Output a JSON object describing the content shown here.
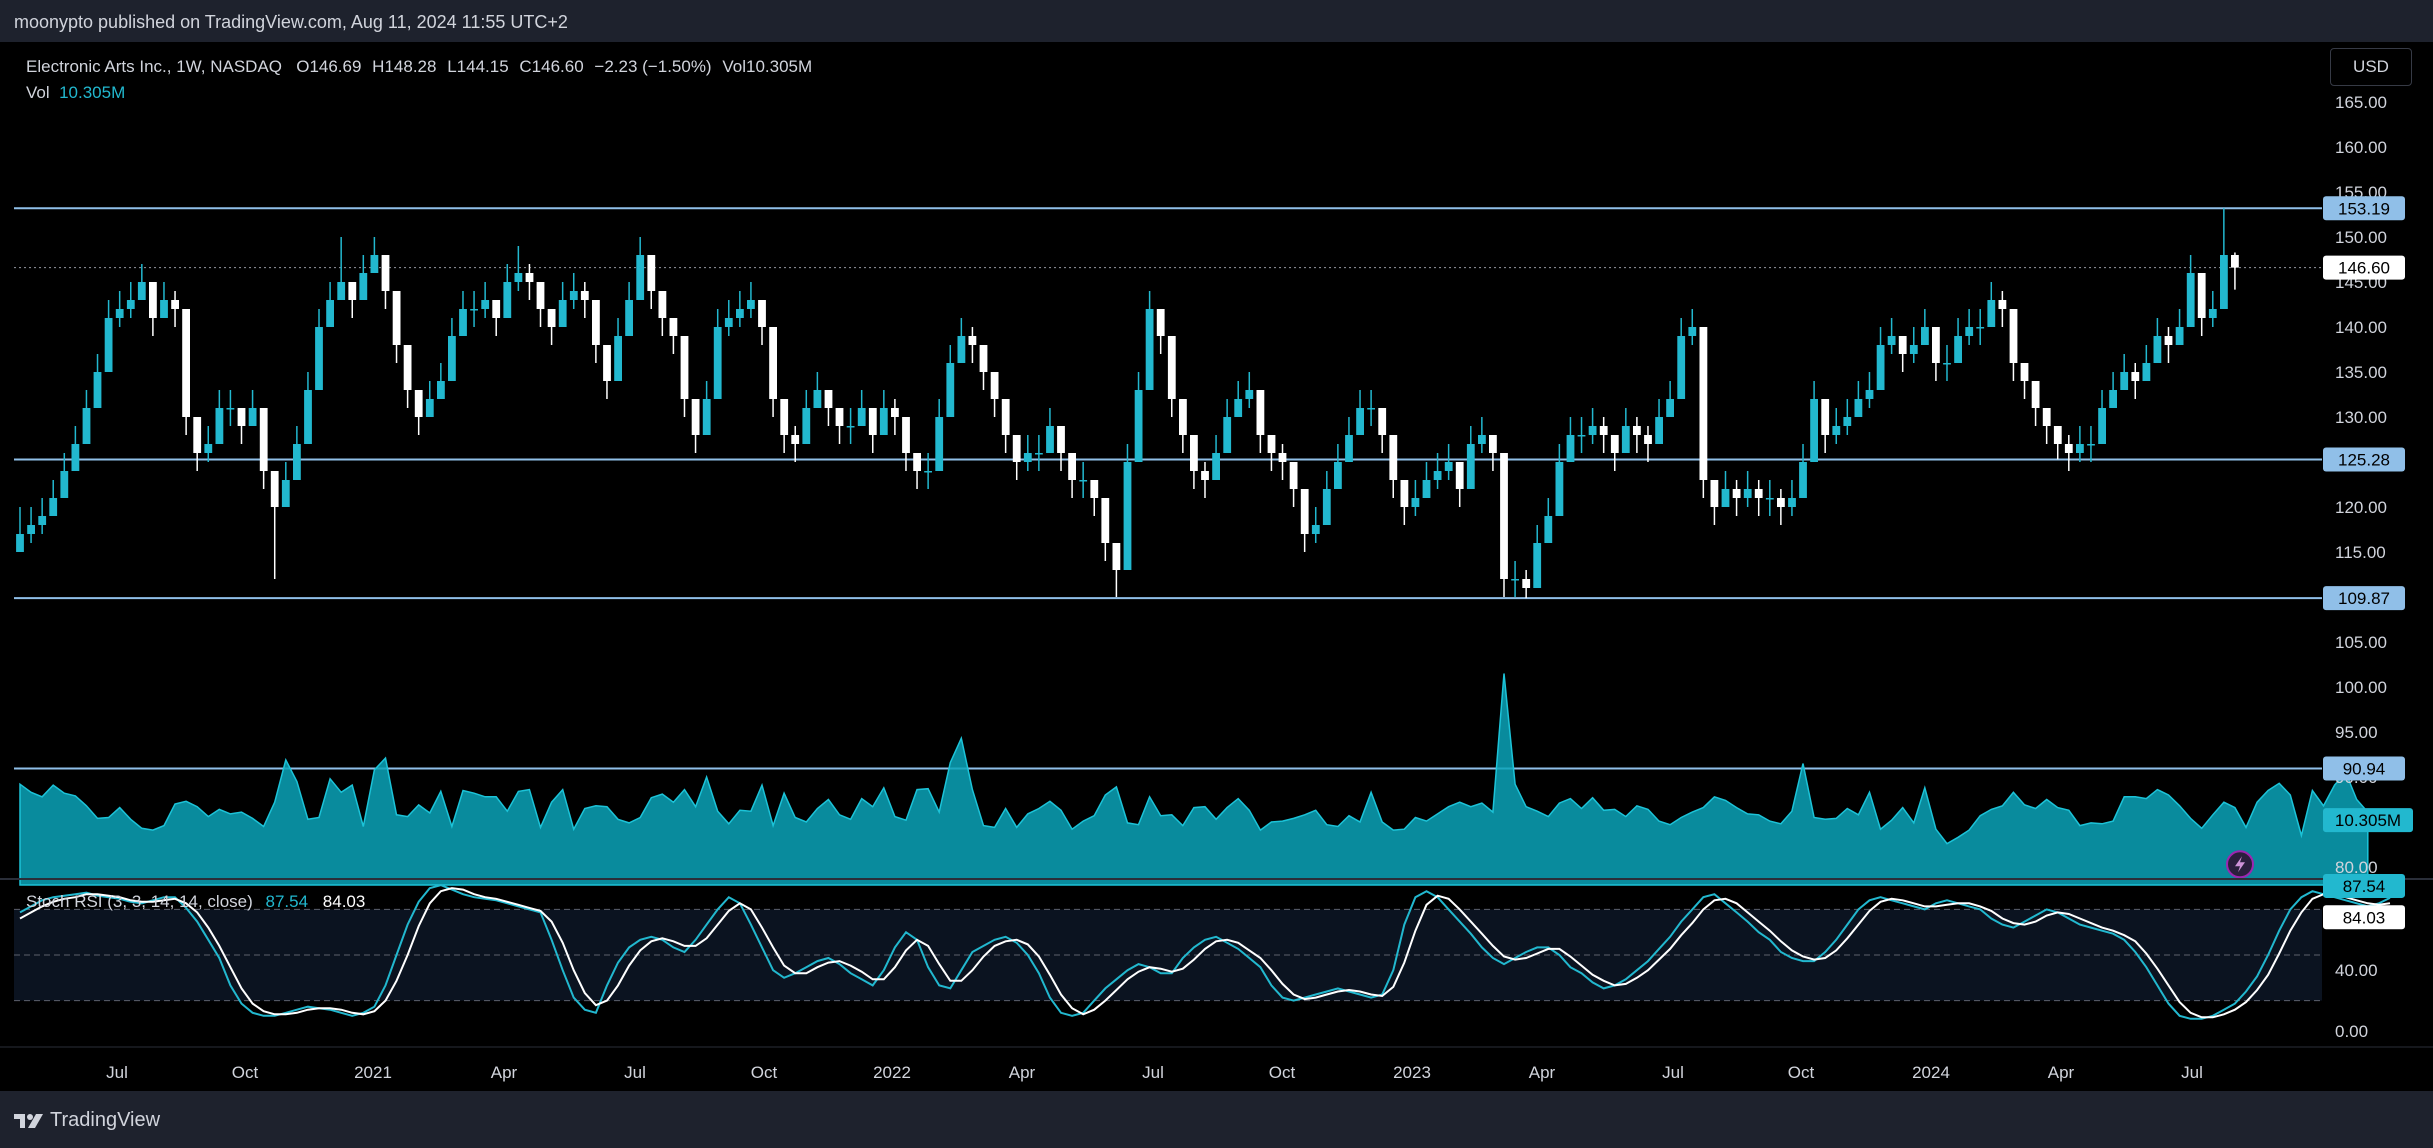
{
  "header": {
    "publisher_line": "moonypto published on TradingView.com, Aug 11, 2024 11:55 UTC+2"
  },
  "symbol": {
    "name": "Electronic Arts Inc., 1W, NASDAQ",
    "open_label": "O",
    "open": "146.69",
    "high_label": "H",
    "high": "148.28",
    "low_label": "L",
    "low": "144.15",
    "close_label": "C",
    "close": "146.60",
    "change": "−2.23 (−1.50%)",
    "vol_label": "Vol",
    "vol": "10.305M",
    "vol_line_label": "Vol",
    "vol_line_value": "10.305M"
  },
  "currency": "USD",
  "stoch": {
    "title": "Stoch RSI (3, 3, 14, 14, close)",
    "k": "87.54",
    "d": "84.03"
  },
  "footer": {
    "brand": "TradingView"
  },
  "colors": {
    "background": "#000000",
    "frame": "#1e222d",
    "up": "#22b8cf",
    "down": "#ffffff",
    "level_line": "#90bfe8",
    "volume": "#0aa3b8",
    "stoch_k": "#22b8cf",
    "stoch_d": "#ffffff"
  },
  "icons": [
    "tradingview-logo-icon",
    "lightning-icon"
  ],
  "chart_data": {
    "type": "candlestick",
    "interval": "1W",
    "price_axis": {
      "ticks": [
        "80.00",
        "85.00",
        "90.00",
        "95.00",
        "100.00",
        "105.00",
        "110.00",
        "115.00",
        "120.00",
        "125.00",
        "130.00",
        "135.00",
        "140.00",
        "145.00",
        "150.00",
        "155.00",
        "160.00",
        "165.00"
      ],
      "range": [
        78,
        168
      ]
    },
    "time_axis": {
      "ticks": [
        "Jul",
        "Oct",
        "2021",
        "Apr",
        "Jul",
        "Oct",
        "2022",
        "Apr",
        "Jul",
        "Oct",
        "2023",
        "Apr",
        "Jul",
        "Oct",
        "2024",
        "Apr",
        "Jul"
      ]
    },
    "horizontal_levels": [
      {
        "value": 153.19,
        "label": "153.19"
      },
      {
        "value": 125.28,
        "label": "125.28"
      },
      {
        "value": 109.87,
        "label": "109.87"
      },
      {
        "value": 90.94,
        "label": "90.94"
      }
    ],
    "last_price": {
      "value": 146.6,
      "label": "146.60"
    },
    "last_volume_label": "10.305M",
    "closes": [
      117,
      118,
      119,
      121,
      124,
      127,
      131,
      135,
      141,
      142,
      143,
      145,
      141,
      143,
      142,
      130,
      126,
      127,
      131,
      131,
      129,
      131,
      124,
      120,
      123,
      127,
      133,
      140,
      143,
      145,
      143,
      146,
      148,
      144,
      138,
      133,
      130,
      132,
      134,
      139,
      142,
      142,
      143,
      141,
      145,
      146,
      145,
      142,
      140,
      143,
      144,
      143,
      138,
      134,
      139,
      143,
      148,
      144,
      141,
      139,
      132,
      128,
      132,
      140,
      141,
      142,
      143,
      140,
      132,
      128,
      127,
      131,
      133,
      131,
      129,
      129,
      131,
      128,
      131,
      130,
      126,
      124,
      124,
      130,
      136,
      139,
      138,
      135,
      132,
      128,
      125,
      126,
      126,
      129,
      126,
      123,
      123,
      121,
      116,
      113,
      125,
      133,
      142,
      139,
      132,
      128,
      124,
      123,
      126,
      130,
      132,
      133,
      128,
      126,
      125,
      122,
      117,
      118,
      122,
      125,
      128,
      131,
      131,
      128,
      123,
      120,
      121,
      123,
      124,
      125,
      122,
      127,
      128,
      126,
      112,
      112,
      111,
      116,
      119,
      125,
      128,
      128,
      129,
      128,
      126,
      129,
      128,
      127,
      130,
      132,
      139,
      140,
      123,
      120,
      122,
      121,
      122,
      121,
      121,
      120,
      121,
      125,
      132,
      128,
      129,
      130,
      132,
      133,
      138,
      139,
      137,
      138,
      140,
      136,
      136,
      139,
      140,
      140,
      143,
      142,
      136,
      134,
      131,
      129,
      127,
      126,
      127,
      127,
      131,
      133,
      135,
      134,
      136,
      139,
      138,
      140,
      146,
      141,
      142,
      148,
      146.6
    ],
    "highs": [
      120,
      120,
      121,
      123,
      126,
      129,
      133,
      137,
      143,
      144,
      145,
      147,
      143,
      145,
      144,
      132,
      128,
      129,
      133,
      133,
      131,
      133,
      126,
      122,
      125,
      129,
      135,
      142,
      145,
      150,
      145,
      148,
      150,
      146,
      140,
      135,
      132,
      134,
      136,
      141,
      144,
      144,
      145,
      143,
      147,
      149,
      147,
      144,
      142,
      145,
      146,
      145,
      140,
      136,
      141,
      145,
      150,
      146,
      143,
      141,
      134,
      130,
      134,
      142,
      143,
      144,
      145,
      142,
      134,
      130,
      129,
      133,
      135,
      133,
      131,
      131,
      133,
      130,
      133,
      132,
      128,
      126,
      126,
      132,
      138,
      141,
      140,
      137,
      134,
      130,
      127,
      128,
      128,
      131,
      128,
      125,
      125,
      123,
      118,
      115,
      127,
      135,
      144,
      141,
      134,
      130,
      126,
      125,
      128,
      132,
      134,
      135,
      130,
      128,
      127,
      124,
      119,
      120,
      124,
      127,
      130,
      133,
      133,
      130,
      125,
      122,
      123,
      125,
      126,
      127,
      124,
      129,
      130,
      128,
      114,
      114,
      113,
      118,
      121,
      127,
      130,
      130,
      131,
      130,
      128,
      131,
      130,
      129,
      132,
      134,
      141,
      142,
      125,
      122,
      124,
      123,
      124,
      123,
      123,
      122,
      123,
      127,
      134,
      130,
      131,
      132,
      134,
      135,
      140,
      141,
      139,
      140,
      142,
      138,
      138,
      141,
      142,
      142,
      145,
      144,
      138,
      136,
      133,
      131,
      129,
      128,
      129,
      129,
      133,
      135,
      137,
      136,
      138,
      141,
      140,
      142,
      148,
      143,
      144,
      153.2,
      148.28
    ],
    "lows": [
      115,
      116,
      117,
      119,
      122,
      125,
      129,
      133,
      139,
      140,
      141,
      143,
      139,
      141,
      140,
      128,
      124,
      125,
      129,
      129,
      127,
      129,
      122,
      112,
      121,
      125,
      131,
      138,
      141,
      143,
      141,
      144,
      146,
      142,
      136,
      131,
      128,
      130,
      132,
      137,
      140,
      140,
      141,
      139,
      143,
      144,
      143,
      140,
      138,
      141,
      142,
      141,
      136,
      132,
      137,
      141,
      146,
      142,
      139,
      137,
      130,
      126,
      130,
      138,
      139,
      140,
      141,
      138,
      130,
      126,
      125,
      129,
      131,
      129,
      127,
      127,
      129,
      126,
      129,
      128,
      124,
      122,
      122,
      128,
      134,
      137,
      136,
      133,
      130,
      126,
      123,
      124,
      124,
      127,
      124,
      121,
      121,
      119,
      114,
      110,
      123,
      131,
      140,
      137,
      130,
      126,
      122,
      121,
      124,
      128,
      130,
      131,
      126,
      124,
      123,
      120,
      115,
      116,
      120,
      123,
      126,
      129,
      129,
      126,
      121,
      118,
      119,
      121,
      122,
      123,
      120,
      125,
      126,
      124,
      110,
      110,
      109.87,
      114,
      117,
      123,
      126,
      126,
      127,
      126,
      124,
      127,
      126,
      125,
      128,
      130,
      137,
      138,
      121,
      118,
      120,
      119,
      120,
      119,
      119,
      118,
      119,
      123,
      130,
      126,
      127,
      128,
      130,
      131,
      136,
      137,
      135,
      136,
      138,
      134,
      134,
      137,
      138,
      138,
      141,
      140,
      134,
      132,
      129,
      127,
      125.3,
      124,
      125,
      125,
      129,
      131,
      133,
      132,
      134,
      137,
      136,
      138,
      144,
      139,
      140,
      146,
      144.15
    ],
    "volumes": [
      89.2,
      88.3,
      87.8,
      89.1,
      88.2,
      87.9,
      86.8,
      85.4,
      85.5,
      86.6,
      85.3,
      84.3,
      84.1,
      84.6,
      87,
      87.3,
      86.7,
      85.6,
      86.4,
      85.9,
      86.1,
      85.4,
      84.5,
      87.2,
      91.9,
      89.5,
      85.3,
      85.5,
      89.8,
      88.3,
      89.1,
      84.5,
      90.8,
      92.1,
      85.8,
      85.6,
      86.9,
      86,
      88.4,
      84.5,
      88.5,
      88.2,
      87.8,
      87.8,
      86.2,
      88.4,
      88.6,
      84.4,
      87.2,
      88.6,
      84.2,
      86.5,
      86.8,
      86.7,
      85.3,
      84.9,
      85.5,
      87.7,
      88.1,
      87.2,
      88.6,
      86.7,
      90,
      86.2,
      84.8,
      86.3,
      86.2,
      89.1,
      84.6,
      88.2,
      85.5,
      85,
      86.5,
      87.5,
      85.8,
      85.3,
      87.6,
      86.7,
      88.8,
      85.6,
      85.2,
      88.6,
      88.7,
      86.1,
      91.6,
      94.3,
      88.6,
      84.6,
      84.4,
      86.5,
      84.4,
      85.9,
      86.5,
      87.3,
      86.3,
      84.2,
      85.1,
      85.7,
      88,
      88.9,
      84.9,
      84.7,
      87.8,
      85.7,
      85.8,
      84.6,
      86.6,
      86.7,
      85.3,
      86.6,
      87.6,
      86.3,
      84.1,
      85,
      85.1,
      85.4,
      85.8,
      86.3,
      84.7,
      84.5,
      85.7,
      85,
      88.3,
      85,
      84.1,
      84.2,
      85.5,
      85.1,
      85.9,
      86.7,
      87.2,
      86.7,
      87.1,
      86.1,
      101.5,
      89.2,
      86.7,
      86.2,
      85.6,
      87.1,
      87.6,
      86.5,
      87.7,
      86.3,
      86.4,
      85.6,
      86.8,
      86.4,
      85.1,
      84.7,
      85.5,
      86.1,
      86.6,
      87.8,
      87.4,
      86.6,
      85.9,
      85.8,
      85.1,
      84.8,
      86.2,
      91.5,
      85.5,
      85.3,
      85.4,
      86.5,
      85.8,
      88.3,
      84.2,
      85.2,
      86.6,
      84.9,
      88.8,
      84.2,
      82.6,
      83.3,
      84.1,
      85.7,
      86.4,
      86.8,
      88.3,
      86.9,
      86.5,
      87.5,
      86.6,
      86.3,
      84.6,
      84.9,
      84.8,
      85.1,
      87.8,
      87.8,
      87.6,
      88.6,
      88,
      86.8,
      85.4,
      84.3,
      85.8,
      87.2,
      86.6,
      84.4,
      87.2,
      88.5,
      89.3,
      88,
      83.5,
      88.5,
      86.8,
      89.1,
      90.5,
      87.5,
      86.1
    ],
    "stoch_k": [
      78,
      82,
      86,
      88,
      89,
      90,
      91,
      89,
      88,
      87,
      85,
      84,
      86,
      88,
      88,
      81,
      72,
      60,
      48,
      30,
      18,
      12,
      10,
      10,
      12,
      14,
      16,
      15,
      14,
      12,
      10,
      12,
      16,
      30,
      50,
      70,
      85,
      94,
      96,
      93,
      90,
      88,
      87,
      86,
      84,
      82,
      80,
      78,
      60,
      40,
      22,
      14,
      12,
      30,
      45,
      55,
      60,
      62,
      60,
      55,
      52,
      60,
      70,
      80,
      88,
      84,
      70,
      55,
      40,
      35,
      38,
      42,
      46,
      48,
      44,
      38,
      34,
      30,
      40,
      55,
      65,
      60,
      42,
      30,
      28,
      40,
      52,
      56,
      60,
      62,
      58,
      50,
      38,
      22,
      12,
      10,
      12,
      20,
      28,
      34,
      40,
      44,
      42,
      38,
      38,
      48,
      55,
      60,
      62,
      58,
      54,
      48,
      42,
      30,
      22,
      20,
      22,
      24,
      26,
      28,
      26,
      24,
      22,
      24,
      40,
      70,
      88,
      92,
      88,
      80,
      72,
      64,
      55,
      48,
      44,
      48,
      52,
      55,
      55,
      50,
      42,
      38,
      32,
      28,
      30,
      34,
      40,
      46,
      54,
      62,
      72,
      80,
      88,
      90,
      84,
      78,
      72,
      65,
      60,
      52,
      48,
      46,
      46,
      52,
      60,
      70,
      80,
      86,
      88,
      86,
      84,
      82,
      80,
      84,
      86,
      84,
      82,
      80,
      74,
      70,
      68,
      72,
      76,
      80,
      78,
      74,
      70,
      68,
      66,
      64,
      60,
      52,
      42,
      30,
      18,
      10,
      8,
      8,
      10,
      14,
      18,
      26,
      36,
      50,
      66,
      80,
      88,
      92,
      90,
      88,
      86,
      84,
      82,
      84,
      87.54
    ],
    "stoch_d": [
      74,
      78,
      82,
      85,
      87,
      88,
      90,
      90,
      89,
      88,
      86,
      85,
      85,
      86,
      87,
      84,
      78,
      68,
      56,
      42,
      28,
      18,
      13,
      11,
      11,
      12,
      14,
      15,
      15,
      14,
      12,
      11,
      13,
      20,
      33,
      50,
      69,
      84,
      92,
      94,
      93,
      90,
      88,
      87,
      85,
      83,
      81,
      79,
      72,
      58,
      40,
      25,
      17,
      20,
      30,
      43,
      53,
      59,
      61,
      59,
      56,
      56,
      61,
      70,
      79,
      84,
      80,
      68,
      55,
      43,
      38,
      38,
      42,
      45,
      46,
      43,
      39,
      34,
      34,
      42,
      53,
      60,
      56,
      44,
      33,
      33,
      40,
      49,
      56,
      59,
      60,
      57,
      49,
      37,
      24,
      15,
      11,
      14,
      20,
      27,
      34,
      39,
      42,
      41,
      39,
      41,
      47,
      54,
      59,
      60,
      58,
      53,
      48,
      40,
      31,
      24,
      21,
      22,
      24,
      26,
      27,
      26,
      24,
      23,
      29,
      45,
      66,
      83,
      89,
      87,
      80,
      72,
      64,
      56,
      49,
      47,
      48,
      51,
      54,
      54,
      49,
      43,
      37,
      33,
      30,
      31,
      35,
      40,
      47,
      54,
      63,
      71,
      80,
      86,
      87,
      84,
      78,
      72,
      66,
      59,
      53,
      49,
      47,
      48,
      53,
      61,
      70,
      79,
      85,
      87,
      86,
      84,
      82,
      82,
      83,
      84,
      84,
      82,
      79,
      74,
      71,
      70,
      72,
      76,
      78,
      77,
      74,
      71,
      68,
      66,
      63,
      59,
      51,
      41,
      30,
      19,
      12,
      9,
      9,
      11,
      14,
      19,
      27,
      37,
      51,
      66,
      78,
      87,
      90,
      90,
      88,
      86,
      84,
      83,
      84.03
    ],
    "stoch_levels": [
      80,
      50,
      20
    ],
    "stoch_ticks": [
      "0.00",
      "40.00"
    ]
  }
}
